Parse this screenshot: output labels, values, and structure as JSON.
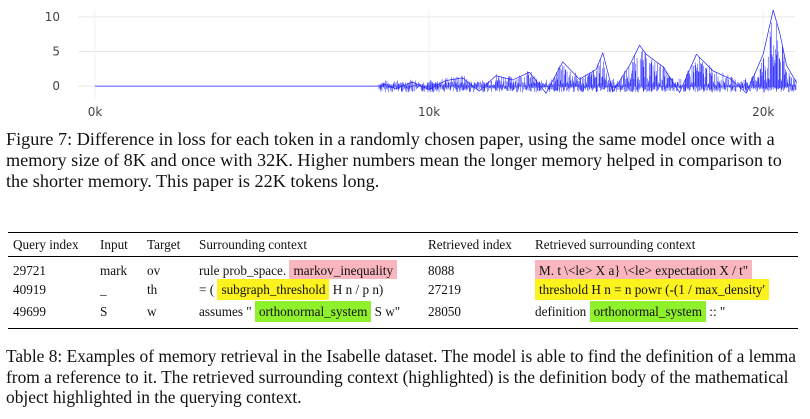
{
  "chart_data": {
    "type": "line",
    "x_ticks": [
      "0k",
      "10k",
      "20k"
    ],
    "x_tick_values": [
      0,
      10000,
      20000
    ],
    "y_ticks": [
      "0",
      "5",
      "10"
    ],
    "y_tick_values": [
      0,
      5,
      10
    ],
    "xlim": [
      0,
      22000
    ],
    "ylim": [
      -2,
      11
    ],
    "grid": true,
    "series_color": "#1f1fff",
    "series": [
      {
        "values_description_free": true,
        "x_start": 0,
        "x_end": 21000,
        "points": [
          [
            0,
            0
          ],
          [
            8500,
            0
          ],
          [
            8700,
            0.3
          ],
          [
            9000,
            -0.4
          ],
          [
            9500,
            0.6
          ],
          [
            10000,
            -0.5
          ],
          [
            10500,
            0.8
          ],
          [
            11000,
            1.2
          ],
          [
            11500,
            -0.7
          ],
          [
            12000,
            1.5
          ],
          [
            12500,
            0.9
          ],
          [
            13000,
            2.0
          ],
          [
            13500,
            -1.0
          ],
          [
            14000,
            3.5
          ],
          [
            14500,
            1.0
          ],
          [
            15000,
            2.4
          ],
          [
            15200,
            4.8
          ],
          [
            15500,
            -0.8
          ],
          [
            16000,
            3.0
          ],
          [
            16300,
            5.9
          ],
          [
            16500,
            4.6
          ],
          [
            17000,
            2.8
          ],
          [
            17500,
            -0.9
          ],
          [
            18000,
            4.6
          ],
          [
            18500,
            2.2
          ],
          [
            19000,
            1.1
          ],
          [
            19500,
            -1.0
          ],
          [
            20000,
            4.6
          ],
          [
            20300,
            11.0
          ],
          [
            20500,
            7.6
          ],
          [
            20700,
            3.0
          ],
          [
            21000,
            0.5
          ]
        ]
      }
    ]
  },
  "figure": {
    "caption": "Figure 7: Difference in loss for each token in a randomly chosen paper, using the same model once with a memory size of 8K and once with 32K. Higher numbers mean the longer memory helped in comparison to the shorter memory. This paper is 22K tokens long."
  },
  "table": {
    "headers": [
      "Query index",
      "Input",
      "Target",
      "Surrounding context",
      "Retrieved index",
      "Retrieved surrounding context"
    ],
    "rows": [
      {
        "query_index": "29721",
        "input": "mark",
        "target": "ov",
        "context_pre": "rule prob_space.",
        "context_hl": "markov_inequality",
        "context_post": "",
        "context_color": "pink",
        "retrieved_index": "8088",
        "retrieved_pre": "",
        "retrieved_hl": "M. t \\<le> X a} \\<le> expectation X / t\"",
        "retrieved_post": "",
        "retrieved_color": "pink"
      },
      {
        "query_index": "40919",
        "input": "_",
        "target": "th",
        "context_pre": "= (",
        "context_hl": "subgraph_threshold",
        "context_post": "H n / p n)",
        "context_color": "yellow",
        "retrieved_index": "27219",
        "retrieved_pre": "",
        "retrieved_hl": "threshold H n = n powr (-(1 / max_density'",
        "retrieved_post": "",
        "retrieved_color": "yellow"
      },
      {
        "query_index": "49699",
        "input": "S",
        "target": "w",
        "context_pre": "assumes \"",
        "context_hl": "orthonormal_system",
        "context_post": "S w\"",
        "context_color": "green",
        "retrieved_index": "28050",
        "retrieved_pre": "definition",
        "retrieved_hl": "orthonormal_system",
        "retrieved_post": ":: \"",
        "retrieved_color": "green"
      }
    ],
    "caption": "Table 8: Examples of memory retrieval in the Isabelle dataset. The model is able to find the definition of a lemma from a reference to it. The retrieved surrounding context (highlighted) is the definition body of the mathematical object highlighted in the querying context."
  }
}
